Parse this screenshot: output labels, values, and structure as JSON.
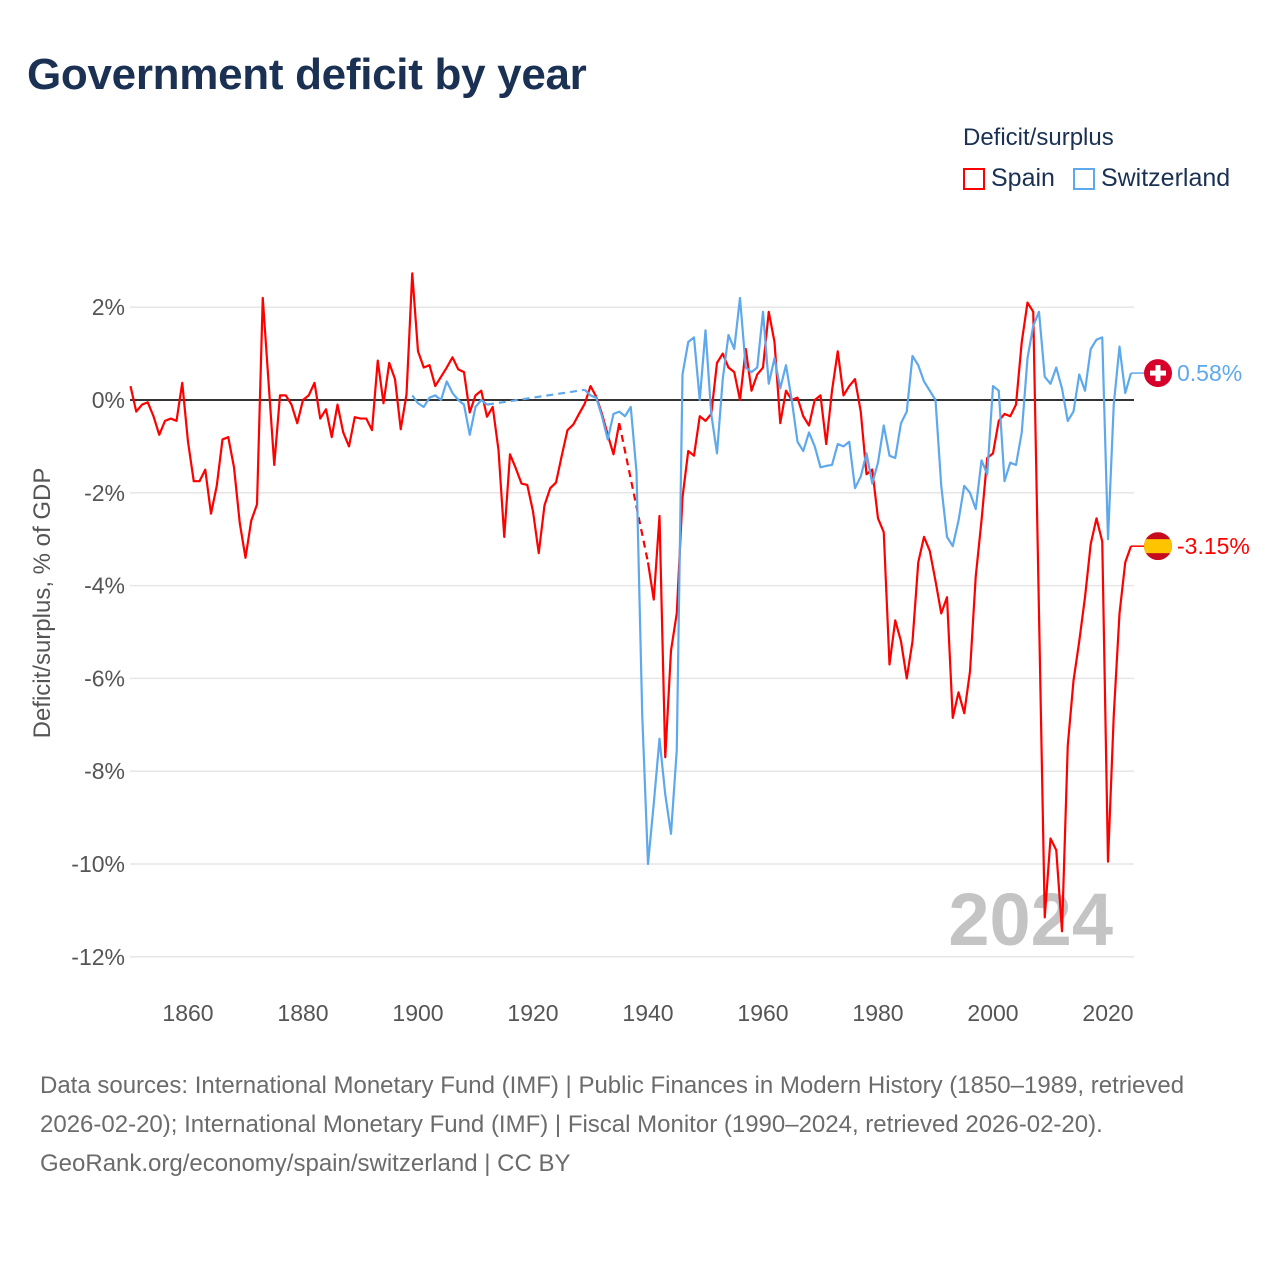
{
  "title": "Government deficit by year",
  "legend": {
    "title": "Deficit/surplus",
    "items": [
      "Spain",
      "Switzerland"
    ]
  },
  "watermark_year": "2024",
  "footer": {
    "sources": "Data sources: International Monetary Fund (IMF) | Public Finances in Modern History (1850–1989, retrieved 2026-02-20); International Monetary Fund (IMF) | Fiscal Monitor (1990–2024, retrieved 2026-02-20).",
    "link": "GeoRank.org/economy/spain/switzerland | CC BY"
  },
  "chart_data": {
    "type": "line",
    "title": "Government deficit by year",
    "xlabel": "",
    "ylabel": "Deficit/surplus, % of GDP",
    "xlim": [
      1850,
      2024
    ],
    "ylim": [
      -12.5,
      2.9
    ],
    "xticks": [
      1860,
      1880,
      1900,
      1920,
      1940,
      1960,
      1980,
      2000,
      2020
    ],
    "yticks": [
      2,
      0,
      -2,
      -4,
      -6,
      -8,
      -10,
      -12
    ],
    "ytick_labels": [
      "2%",
      "0%",
      "-2%",
      "-4%",
      "-6%",
      "-8%",
      "-10%",
      "-12%"
    ],
    "grid": true,
    "legend_position": "top-right",
    "series": [
      {
        "name": "Spain",
        "color": "#ff0000",
        "start_year": 1850,
        "end_label": "-3.15%",
        "values": [
          0.3,
          -0.25,
          -0.1,
          -0.05,
          -0.35,
          -0.75,
          -0.45,
          -0.4,
          -0.45,
          0.37,
          -0.9,
          -1.75,
          -1.75,
          -1.5,
          -2.45,
          -1.85,
          -0.85,
          -0.8,
          -1.45,
          -2.65,
          -3.4,
          -2.6,
          -2.25,
          2.2,
          0.4,
          -1.4,
          0.1,
          0.1,
          -0.1,
          -0.5,
          0,
          0.1,
          0.37,
          -0.4,
          -0.2,
          -0.8,
          -0.1,
          -0.7,
          -1.0,
          -0.37,
          -0.4,
          -0.4,
          -0.65,
          0.85,
          -0.07,
          0.8,
          0.45,
          -0.63,
          0.12,
          2.73,
          1.05,
          0.7,
          0.75,
          0.3,
          0.5,
          0.7,
          0.92,
          0.66,
          0.6,
          -0.27,
          0.1,
          0.2,
          -0.36,
          -0.15,
          -1.08,
          -2.95,
          -1.17,
          -1.47,
          -1.8,
          -1.83,
          -2.4,
          -3.3,
          -2.27,
          -1.9,
          -1.78,
          -1.2,
          -0.65,
          -0.53,
          -0.3,
          -0.08,
          0.3,
          0.07,
          -0.3,
          -0.75,
          -1.17,
          -0.5,
          null,
          null,
          null,
          null,
          -3.5,
          -4.3,
          -2.5,
          -7.7,
          -5.4,
          -4.6,
          -2.1,
          -1.1,
          -1.2,
          -0.35,
          -0.45,
          -0.3,
          0.8,
          1.0,
          0.7,
          0.6,
          0,
          1.1,
          0.2,
          0.55,
          0.7,
          1.9,
          1.25,
          -0.5,
          0.2,
          0,
          0.05,
          -0.35,
          -0.55,
          0,
          0.1,
          -0.95,
          0.2,
          1.05,
          0.1,
          0.3,
          0.45,
          -0.25,
          -1.6,
          -1.5,
          -2.55,
          -2.85,
          -5.7,
          -4.75,
          -5.2,
          -6.0,
          -5.2,
          -3.5,
          -2.95,
          -3.25,
          -3.9,
          -4.6,
          -4.25,
          -6.85,
          -6.3,
          -6.75,
          -5.85,
          -3.8,
          -2.6,
          -1.25,
          -1.15,
          -0.45,
          -0.3,
          -0.35,
          -0.1,
          1.25,
          2.1,
          1.9,
          -4.6,
          -11.15,
          -9.45,
          -9.7,
          -11.45,
          -7.45,
          -6.05,
          -5.2,
          -4.25,
          -3.1,
          -2.55,
          -3.05,
          -9.95,
          -6.8,
          -4.6,
          -3.5,
          -3.15
        ]
      },
      {
        "name": "Switzerland",
        "color": "#5ea8ec",
        "start_year": 1899,
        "end_label": "0.58%",
        "values": [
          0.1,
          -0.07,
          -0.15,
          0.05,
          0.1,
          0,
          0.4,
          0.15,
          0,
          -0.1,
          -0.75,
          -0.15,
          0,
          -0.1,
          null,
          null,
          null,
          null,
          null,
          null,
          null,
          null,
          null,
          null,
          null,
          null,
          null,
          null,
          null,
          null,
          0.22,
          0.1,
          0.05,
          -0.35,
          -0.85,
          -0.3,
          -0.25,
          -0.35,
          -0.15,
          -1.55,
          -6.8,
          -10,
          -8.7,
          -7.3,
          -8.5,
          -9.35,
          -7.55,
          0.55,
          1.25,
          1.35,
          0,
          1.5,
          -0.3,
          -1.15,
          0.45,
          1.4,
          1.1,
          2.2,
          0.7,
          0.6,
          0.7,
          1.9,
          0.35,
          0.9,
          0.25,
          0.75,
          0,
          -0.9,
          -1.1,
          -0.7,
          -1.0,
          -1.45,
          -1.42,
          -1.4,
          -0.95,
          -1.0,
          -0.9,
          -1.9,
          -1.65,
          -1.15,
          -1.8,
          -1.35,
          -0.55,
          -1.2,
          -1.25,
          -0.5,
          -0.25,
          0.95,
          0.75,
          0.4,
          0.2,
          0,
          -1.85,
          -2.95,
          -3.15,
          -2.6,
          -1.85,
          -2.0,
          -2.35,
          -1.3,
          -1.6,
          0.3,
          0.2,
          -1.75,
          -1.35,
          -1.4,
          -0.7,
          0.9,
          1.6,
          1.9,
          0.5,
          0.35,
          0.7,
          0.25,
          -0.45,
          -0.25,
          0.55,
          0.2,
          1.1,
          1.3,
          1.35,
          -3.0,
          -0.1,
          1.15,
          0.15,
          0.58
        ]
      }
    ]
  }
}
